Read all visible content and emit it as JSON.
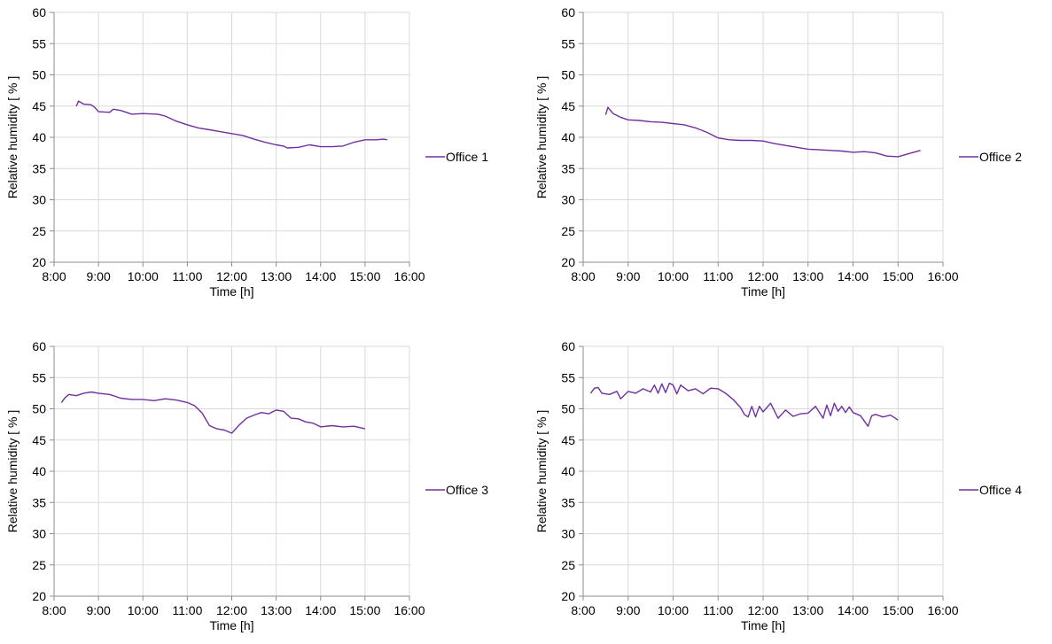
{
  "chart_data": [
    {
      "type": "line",
      "xlabel": "Time [h]",
      "ylabel": "Relative humidity [ % ]",
      "xlim": [
        "8:00",
        "16:00"
      ],
      "ylim": [
        20,
        60
      ],
      "x_ticks": [
        "8:00",
        "9:00",
        "10:00",
        "11:00",
        "12:00",
        "13:00",
        "14:00",
        "15:00",
        "16:00"
      ],
      "y_ticks": [
        20,
        25,
        30,
        35,
        40,
        45,
        50,
        55,
        60
      ],
      "grid": true,
      "legend_position": "right",
      "series": [
        {
          "name": "Office 1",
          "color": "#7030a0",
          "x": [
            "8:30",
            "8:33",
            "8:40",
            "8:50",
            "8:55",
            "9:00",
            "9:15",
            "9:20",
            "9:30",
            "9:45",
            "10:00",
            "10:20",
            "10:30",
            "10:45",
            "11:00",
            "11:15",
            "11:30",
            "11:45",
            "12:00",
            "12:15",
            "12:30",
            "12:45",
            "13:00",
            "13:10",
            "13:15",
            "13:30",
            "13:45",
            "14:00",
            "14:15",
            "14:30",
            "14:45",
            "15:00",
            "15:15",
            "15:25",
            "15:30"
          ],
          "y": [
            45.0,
            45.8,
            45.3,
            45.2,
            44.8,
            44.1,
            44.0,
            44.5,
            44.3,
            43.7,
            43.8,
            43.7,
            43.4,
            42.6,
            42.0,
            41.5,
            41.2,
            40.9,
            40.6,
            40.3,
            39.7,
            39.2,
            38.8,
            38.6,
            38.3,
            38.4,
            38.8,
            38.5,
            38.5,
            38.6,
            39.2,
            39.6,
            39.6,
            39.7,
            39.6
          ]
        },
        {
          "name": "Office 2",
          "color": "#7030a0",
          "x": [
            "8:30",
            "8:33",
            "8:40",
            "8:50",
            "9:00",
            "9:15",
            "9:30",
            "9:45",
            "10:00",
            "10:15",
            "10:30",
            "10:45",
            "11:00",
            "11:15",
            "11:30",
            "11:45",
            "12:00",
            "12:15",
            "12:30",
            "12:45",
            "13:00",
            "13:15",
            "13:30",
            "13:45",
            "14:00",
            "14:15",
            "14:30",
            "14:45",
            "15:00",
            "15:15",
            "15:30"
          ],
          "y": [
            43.6,
            44.8,
            43.8,
            43.2,
            42.8,
            42.7,
            42.5,
            42.4,
            42.2,
            42.0,
            41.5,
            40.8,
            39.9,
            39.6,
            39.5,
            39.5,
            39.4,
            39.0,
            38.7,
            38.4,
            38.1,
            38.0,
            37.9,
            37.8,
            37.6,
            37.7,
            37.5,
            37.0,
            36.9,
            37.4,
            37.9
          ]
        },
        {
          "name": "Office 3",
          "color": "#7030a0",
          "x": [
            "8:10",
            "8:15",
            "8:20",
            "8:30",
            "8:40",
            "8:50",
            "9:00",
            "9:15",
            "9:30",
            "9:45",
            "10:00",
            "10:15",
            "10:30",
            "10:45",
            "11:00",
            "11:10",
            "11:20",
            "11:30",
            "11:40",
            "11:50",
            "12:00",
            "12:10",
            "12:20",
            "12:30",
            "12:40",
            "12:50",
            "13:00",
            "13:10",
            "13:20",
            "13:30",
            "13:40",
            "13:50",
            "14:00",
            "14:15",
            "14:30",
            "14:45",
            "15:00"
          ],
          "y": [
            51.0,
            51.8,
            52.3,
            52.1,
            52.5,
            52.7,
            52.5,
            52.3,
            51.7,
            51.5,
            51.5,
            51.3,
            51.6,
            51.4,
            51.0,
            50.5,
            49.3,
            47.3,
            46.8,
            46.6,
            46.1,
            47.4,
            48.5,
            49.0,
            49.4,
            49.2,
            49.8,
            49.6,
            48.5,
            48.4,
            47.9,
            47.7,
            47.1,
            47.3,
            47.1,
            47.2,
            46.8
          ]
        },
        {
          "name": "Office 4",
          "color": "#7030a0",
          "x": [
            "8:10",
            "8:15",
            "8:20",
            "8:25",
            "8:35",
            "8:45",
            "8:50",
            "9:00",
            "9:10",
            "9:20",
            "9:30",
            "9:35",
            "9:40",
            "9:45",
            "9:50",
            "9:55",
            "10:00",
            "10:05",
            "10:10",
            "10:20",
            "10:30",
            "10:40",
            "10:50",
            "11:00",
            "11:10",
            "11:20",
            "11:30",
            "11:35",
            "11:40",
            "11:45",
            "11:50",
            "11:55",
            "12:00",
            "12:10",
            "12:20",
            "12:30",
            "12:40",
            "12:50",
            "13:00",
            "13:10",
            "13:20",
            "13:25",
            "13:30",
            "13:35",
            "13:40",
            "13:45",
            "13:50",
            "13:55",
            "14:00",
            "14:10",
            "14:20",
            "14:25",
            "14:30",
            "14:40",
            "14:50",
            "15:00"
          ],
          "y": [
            52.5,
            53.3,
            53.4,
            52.5,
            52.3,
            52.8,
            51.6,
            52.8,
            52.5,
            53.2,
            52.7,
            53.8,
            52.5,
            54.0,
            52.6,
            54.1,
            53.8,
            52.4,
            53.8,
            52.9,
            53.2,
            52.4,
            53.3,
            53.2,
            52.5,
            51.5,
            50.2,
            49.1,
            48.7,
            50.4,
            48.7,
            50.4,
            49.5,
            50.9,
            48.5,
            49.8,
            48.8,
            49.2,
            49.3,
            50.4,
            48.5,
            50.6,
            48.9,
            50.9,
            49.6,
            50.4,
            49.4,
            50.3,
            49.4,
            48.9,
            47.2,
            48.9,
            49.1,
            48.7,
            49.0,
            48.2
          ]
        }
      ]
    }
  ]
}
